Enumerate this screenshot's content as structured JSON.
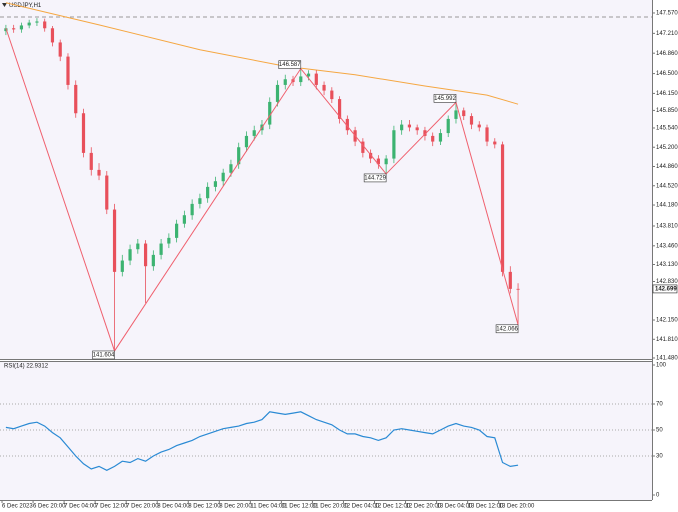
{
  "chart_data": [
    {
      "type": "candlestick",
      "title": "USDJPY,H1",
      "x": [
        1,
        3,
        5,
        7,
        9,
        11,
        13,
        15,
        17,
        19,
        21,
        23,
        25,
        27,
        29,
        31,
        33,
        35,
        37,
        39,
        41,
        43,
        45,
        47,
        49,
        51,
        53,
        55,
        57,
        59,
        61,
        63,
        65,
        67,
        69,
        71,
        73,
        75,
        77,
        79,
        81,
        83,
        85,
        87,
        89,
        91,
        93,
        95,
        97,
        99,
        101,
        103,
        105,
        107,
        109,
        111,
        113,
        115,
        117,
        119,
        121,
        123,
        125,
        127,
        129,
        131,
        133
      ],
      "open": [
        147.25,
        147.3,
        147.28,
        147.35,
        147.4,
        147.42,
        147.3,
        147.05,
        146.8,
        146.3,
        145.8,
        145.1,
        144.8,
        144.7,
        144.1,
        143.0,
        143.2,
        143.4,
        143.5,
        143.1,
        143.3,
        143.5,
        143.6,
        143.85,
        144.0,
        144.2,
        144.3,
        144.5,
        144.6,
        144.75,
        144.9,
        145.2,
        145.4,
        145.5,
        145.6,
        146.0,
        146.3,
        146.4,
        146.35,
        146.45,
        146.5,
        146.3,
        146.2,
        146.05,
        145.7,
        145.5,
        145.3,
        145.1,
        145.0,
        144.9,
        145.0,
        145.5,
        145.6,
        145.55,
        145.5,
        145.4,
        145.3,
        145.45,
        145.7,
        145.85,
        145.75,
        145.6,
        145.55,
        145.3,
        145.25,
        143.0,
        142.7
      ],
      "high": [
        147.36,
        147.36,
        147.4,
        147.45,
        147.48,
        147.47,
        147.34,
        147.1,
        146.86,
        146.38,
        145.88,
        145.2,
        144.92,
        144.78,
        144.2,
        143.3,
        143.48,
        143.58,
        143.56,
        143.38,
        143.58,
        143.68,
        143.92,
        144.08,
        144.28,
        144.38,
        144.58,
        144.68,
        144.82,
        144.98,
        145.28,
        145.48,
        145.58,
        145.68,
        146.08,
        146.38,
        146.48,
        146.46,
        146.587,
        146.56,
        146.56,
        146.36,
        146.26,
        146.1,
        145.76,
        145.56,
        145.36,
        145.16,
        145.06,
        145.06,
        145.58,
        145.68,
        145.68,
        145.6,
        145.56,
        145.46,
        145.52,
        145.76,
        145.992,
        145.9,
        145.8,
        145.66,
        145.6,
        145.36,
        145.3,
        143.1,
        142.8
      ],
      "low": [
        147.18,
        147.22,
        147.22,
        147.3,
        147.34,
        147.24,
        146.98,
        146.72,
        146.22,
        145.72,
        145.02,
        144.7,
        144.62,
        144.02,
        141.604,
        142.92,
        143.12,
        143.32,
        142.45,
        143.02,
        143.22,
        143.42,
        143.52,
        143.78,
        143.92,
        144.12,
        144.22,
        144.42,
        144.52,
        144.68,
        144.82,
        145.12,
        145.32,
        145.42,
        145.52,
        145.92,
        146.22,
        146.28,
        146.28,
        146.38,
        146.22,
        146.12,
        145.98,
        145.62,
        145.42,
        145.22,
        145.02,
        144.92,
        144.82,
        144.729,
        144.92,
        145.42,
        145.48,
        145.42,
        145.32,
        145.22,
        145.24,
        145.38,
        145.62,
        145.68,
        145.52,
        145.48,
        145.22,
        145.18,
        142.92,
        142.62,
        142.066
      ],
      "close": [
        147.3,
        147.28,
        147.35,
        147.4,
        147.42,
        147.3,
        147.05,
        146.8,
        146.3,
        145.8,
        145.1,
        144.8,
        144.7,
        144.1,
        143.0,
        143.2,
        143.4,
        143.5,
        143.1,
        143.3,
        143.5,
        143.6,
        143.85,
        144.0,
        144.2,
        144.3,
        144.5,
        144.6,
        144.75,
        144.9,
        145.2,
        145.4,
        145.5,
        145.6,
        146.0,
        146.3,
        146.4,
        146.35,
        146.45,
        146.5,
        146.3,
        146.2,
        146.05,
        145.7,
        145.5,
        145.3,
        145.1,
        145.0,
        144.9,
        145.0,
        145.5,
        145.6,
        145.55,
        145.5,
        145.4,
        145.3,
        145.45,
        145.7,
        145.85,
        145.75,
        145.6,
        145.55,
        145.3,
        145.25,
        143.0,
        142.7,
        142.699
      ],
      "up_color": "#3cb371",
      "down_color": "#e8505b",
      "ma": {
        "x": [
          1,
          25,
          51,
          73,
          91,
          109,
          125,
          133
        ],
        "values": [
          147.75,
          147.36,
          146.92,
          146.63,
          146.48,
          146.28,
          146.12,
          145.96
        ],
        "color": "#f5a742"
      },
      "zigzag": {
        "x": [
          1,
          29,
          77,
          99,
          117,
          133
        ],
        "values": [
          147.3,
          141.604,
          146.587,
          144.729,
          145.992,
          142.066
        ],
        "value_labels": [
          null,
          "141.604",
          "146.587",
          "144.729",
          "145.992",
          "142.066"
        ],
        "color": "#f0606e"
      },
      "level": 147.5,
      "last_price": 142.699,
      "xlim": [
        -0.52,
        167.52
      ],
      "ylim": [
        141.462,
        147.799
      ],
      "yticks": [
        {
          "value": 147.57,
          "label": "147.570"
        },
        {
          "value": 147.21,
          "label": "147.210"
        },
        {
          "value": 146.86,
          "label": "146.860"
        },
        {
          "value": 146.5,
          "label": "146.500"
        },
        {
          "value": 146.15,
          "label": "146.150"
        },
        {
          "value": 145.85,
          "label": "145.850"
        },
        {
          "value": 145.54,
          "label": "145.540"
        },
        {
          "value": 145.2,
          "label": "145.200"
        },
        {
          "value": 144.86,
          "label": "144.860"
        },
        {
          "value": 144.52,
          "label": "144.520"
        },
        {
          "value": 144.18,
          "label": "144.180"
        },
        {
          "value": 143.81,
          "label": "143.810"
        },
        {
          "value": 143.46,
          "label": "143.460"
        },
        {
          "value": 143.13,
          "label": "143.130"
        },
        {
          "value": 142.83,
          "label": "142.830"
        },
        {
          "value": 142.15,
          "label": "142.150"
        },
        {
          "value": 141.81,
          "label": "141.810"
        },
        {
          "value": 141.48,
          "label": "141.480"
        }
      ]
    },
    {
      "type": "line",
      "title": "RSI(14) 22.9312",
      "x": [
        1,
        3,
        5,
        7,
        9,
        11,
        13,
        15,
        17,
        19,
        21,
        23,
        25,
        27,
        29,
        31,
        33,
        35,
        37,
        39,
        41,
        43,
        45,
        47,
        49,
        51,
        53,
        55,
        57,
        59,
        61,
        63,
        65,
        67,
        69,
        71,
        73,
        75,
        77,
        79,
        81,
        83,
        85,
        87,
        89,
        91,
        93,
        95,
        97,
        99,
        101,
        103,
        105,
        107,
        109,
        111,
        113,
        115,
        117,
        119,
        121,
        123,
        125,
        127,
        129,
        131,
        133
      ],
      "values": [
        52,
        51,
        53,
        55,
        56,
        53,
        48,
        44,
        37,
        30,
        24,
        20,
        22,
        19,
        22,
        26,
        25,
        28,
        26,
        30,
        33,
        35,
        38,
        40,
        42,
        45,
        47,
        49,
        51,
        52,
        53,
        55,
        56,
        58,
        64,
        63,
        62,
        63,
        64,
        61,
        58,
        56,
        54,
        50,
        47,
        47,
        45,
        44,
        42,
        44,
        50,
        51,
        50,
        49,
        48,
        47,
        50,
        53,
        55,
        53,
        52,
        50,
        45,
        44,
        25,
        22,
        22.9312
      ],
      "color": "#2a8ad4",
      "levels": [
        70,
        50,
        30
      ],
      "xlim": [
        -0.52,
        167.52
      ],
      "ylim": [
        -3.85,
        103.08
      ],
      "yticks": [
        100,
        70,
        50,
        30,
        0
      ],
      "xticks": [
        {
          "value": 0,
          "label": "6 Dec 2023"
        },
        {
          "value": 8,
          "label": "6 Dec 20:00"
        },
        {
          "value": 16,
          "label": "7 Dec 04:00"
        },
        {
          "value": 24,
          "label": "7 Dec 12:00"
        },
        {
          "value": 32,
          "label": "7 Dec 20:00"
        },
        {
          "value": 40,
          "label": "8 Dec 04:00"
        },
        {
          "value": 48,
          "label": "8 Dec 12:00"
        },
        {
          "value": 56,
          "label": "8 Dec 20:00"
        },
        {
          "value": 64,
          "label": "11 Dec 04:00"
        },
        {
          "value": 72,
          "label": "11 Dec 12:00"
        },
        {
          "value": 80,
          "label": "11 Dec 20:00"
        },
        {
          "value": 88,
          "label": "12 Dec 04:00"
        },
        {
          "value": 96,
          "label": "12 Dec 12:00"
        },
        {
          "value": 104,
          "label": "12 Dec 20:00"
        },
        {
          "value": 112,
          "label": "13 Dec 04:00"
        },
        {
          "value": 120,
          "label": "13 Dec 12:00"
        },
        {
          "value": 128,
          "label": "13 Dec 20:00"
        }
      ]
    }
  ]
}
